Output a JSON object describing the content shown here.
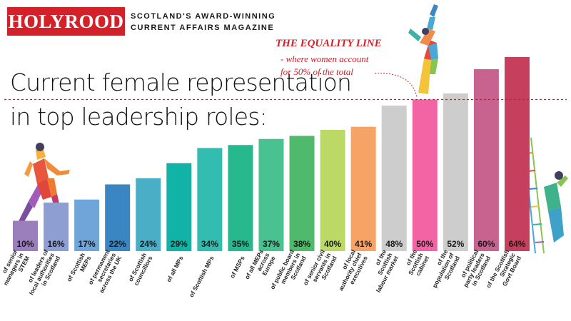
{
  "header": {
    "brand": "HOLYROOD",
    "tagline_line1": "SCOTLAND'S AWARD-WINNING",
    "tagline_line2": "CURRENT AFFAIRS MAGAZINE"
  },
  "title_line1": "Current female representation",
  "title_line2": "in top leadership roles:",
  "annotation": {
    "heading": "THE EQUALITY LINE",
    "line1": "- where women account",
    "line2": "for 50% of the total"
  },
  "colors": {
    "accent": "#d42028",
    "equality_line": "#c0202a"
  },
  "chart_data": {
    "type": "bar",
    "categories": [
      "of senior managers in STEM",
      "of leaders of local authorities in Scotland",
      "of Scottish MEPs",
      "of permanent secretaries across the UK",
      "of Scottish councillors",
      "of all MPs",
      "of Scottish MPs",
      "of MSPs",
      "of all MEPs across Europe",
      "of public board members in Scotland",
      "of senior civil servants in Scotland",
      "of local authority chief executives",
      "of the Scottish labour market",
      "of the Scottish cabinet",
      "of the population of Scotland",
      "of political party leaders in Scotland",
      "of the Scottish Strategic Govt Board"
    ],
    "category_lines": [
      [
        "of senior",
        "managers in",
        "STEM"
      ],
      [
        "of  leaders of",
        "local authorities",
        "in Scotland"
      ],
      [
        "of Scottish",
        "MEPs"
      ],
      [
        "of permanent",
        "secretaries",
        "across the UK"
      ],
      [
        "of Scottish",
        "councillors"
      ],
      [
        "of all MPs"
      ],
      [
        "of Scottish MPs"
      ],
      [
        "of MSPs"
      ],
      [
        "of all MEPs",
        "across",
        "Europe"
      ],
      [
        "of public board",
        "members in",
        "Scotland"
      ],
      [
        "of senior civil",
        "servants in",
        "Scotland"
      ],
      [
        "of local",
        "authority chief",
        "executives"
      ],
      [
        "of the",
        "Scottish",
        "labour market"
      ],
      [
        "of the",
        "Scottish",
        "cabinet"
      ],
      [
        "of the",
        "population of",
        "Scotland"
      ],
      [
        "of political",
        "party leaders",
        "in Scotland"
      ],
      [
        "of the Scottish",
        "Strategic",
        "Govt Board"
      ]
    ],
    "values": [
      10,
      16,
      17,
      22,
      24,
      29,
      34,
      35,
      37,
      38,
      40,
      41,
      48,
      50,
      52,
      60,
      64
    ],
    "value_labels": [
      "10%",
      "16%",
      "17%",
      "22%",
      "24%",
      "29%",
      "34%",
      "35%",
      "37%",
      "38%",
      "40%",
      "41%",
      "48%",
      "50%",
      "52%",
      "60%",
      "64%"
    ],
    "colors": [
      "#9b7fbd",
      "#8e9ed3",
      "#6fa5d8",
      "#3a86c2",
      "#4aaec7",
      "#10b3a6",
      "#32bdb0",
      "#28b88e",
      "#49c190",
      "#4fba6b",
      "#bcd965",
      "#f5a466",
      "#cdcdcd",
      "#f264a3",
      "#cdcdcd",
      "#c8628e",
      "#c63f5c"
    ],
    "reference_line": 50,
    "ylim": [
      0,
      100
    ],
    "grid": false,
    "legend": "none"
  }
}
